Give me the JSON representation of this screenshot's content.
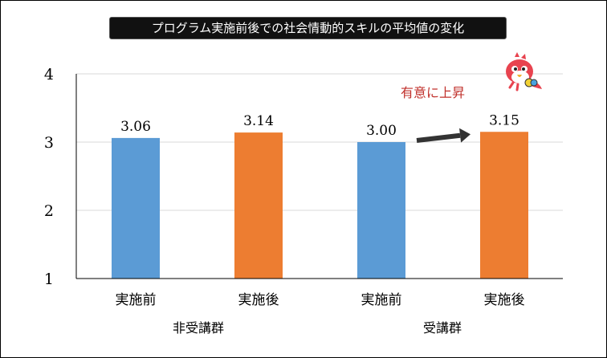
{
  "chart_data": {
    "type": "bar",
    "title": "プログラム実施前後での社会情動的スキルの平均値の変化",
    "groups": [
      "非受講群",
      "受講群"
    ],
    "categories": [
      "実施前",
      "実施後",
      "実施前",
      "実施後"
    ],
    "category_groups": [
      0,
      0,
      1,
      1
    ],
    "values": [
      3.06,
      3.14,
      3.0,
      3.15
    ],
    "value_labels": [
      "3.06",
      "3.14",
      "3.00",
      "3.15"
    ],
    "bar_colors": [
      "#5b9bd5",
      "#ed7d31",
      "#5b9bd5",
      "#ed7d31"
    ],
    "ylim": [
      1,
      4
    ],
    "yticks": [
      1,
      2,
      3,
      4
    ],
    "ytick_labels": [
      "1",
      "2",
      "3",
      "4"
    ],
    "grid": true,
    "annotation": {
      "text": "有意に上昇",
      "from_bar": 2,
      "to_bar": 3,
      "color": "#c0302b"
    }
  },
  "colors": {
    "grid": "#d9d9d9",
    "axis": "#000000",
    "arrow": "#333333"
  },
  "icons": {
    "mascot": "parrot-mascot-icon"
  }
}
